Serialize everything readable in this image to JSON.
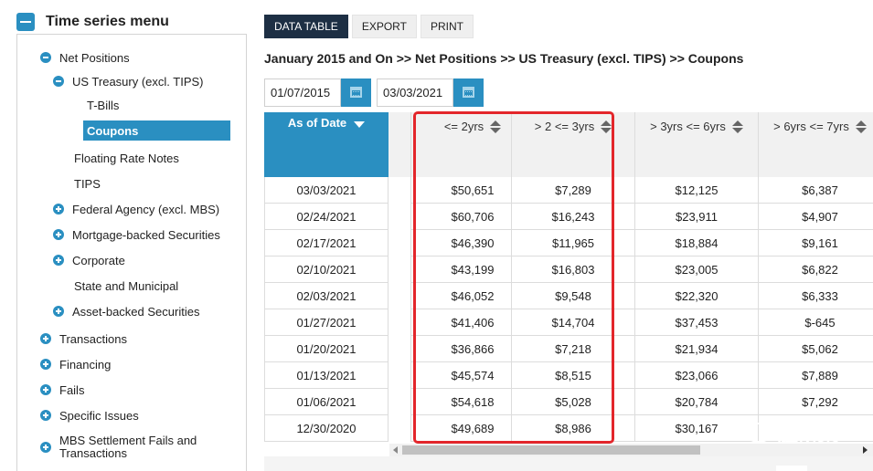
{
  "sidebar": {
    "title": "Time series menu",
    "items": [
      {
        "label": "Net Positions"
      },
      {
        "label": "US Treasury (excl. TIPS)"
      },
      {
        "label": "T-Bills"
      },
      {
        "label": "Coupons"
      },
      {
        "label": "Floating Rate Notes"
      },
      {
        "label": "TIPS"
      },
      {
        "label": "Federal Agency (excl. MBS)"
      },
      {
        "label": "Mortgage-backed Securities"
      },
      {
        "label": "Corporate"
      },
      {
        "label": "State and Municipal"
      },
      {
        "label": "Asset-backed Securities"
      },
      {
        "label": "Transactions"
      },
      {
        "label": "Financing"
      },
      {
        "label": "Fails"
      },
      {
        "label": "Specific Issues"
      },
      {
        "label": "MBS Settlement Fails and Transactions"
      }
    ]
  },
  "tabs": [
    {
      "label": "DATA TABLE"
    },
    {
      "label": "EXPORT"
    },
    {
      "label": "PRINT"
    }
  ],
  "breadcrumb": "January 2015 and On >> Net Positions >> US Treasury (excl. TIPS) >> Coupons",
  "dates": {
    "start": "01/07/2015",
    "end": "03/03/2021"
  },
  "table": {
    "columns": [
      "As of Date",
      "<= 2yrs",
      "> 2 <= 3yrs",
      "> 3yrs <= 6yrs",
      "> 6yrs <= 7yrs"
    ],
    "rows": [
      [
        "03/03/2021",
        "$50,651",
        "$7,289",
        "$12,125",
        "$6,387"
      ],
      [
        "02/24/2021",
        "$60,706",
        "$16,243",
        "$23,911",
        "$4,907"
      ],
      [
        "02/17/2021",
        "$46,390",
        "$11,965",
        "$18,884",
        "$9,161"
      ],
      [
        "02/10/2021",
        "$43,199",
        "$16,803",
        "$23,005",
        "$6,822"
      ],
      [
        "02/03/2021",
        "$46,052",
        "$9,548",
        "$22,320",
        "$6,333"
      ],
      [
        "01/27/2021",
        "$41,406",
        "$14,704",
        "$37,453",
        "$-645"
      ],
      [
        "01/20/2021",
        "$36,866",
        "$7,218",
        "$21,934",
        "$5,062"
      ],
      [
        "01/13/2021",
        "$45,574",
        "$8,515",
        "$23,066",
        "$7,889"
      ],
      [
        "01/06/2021",
        "$54,618",
        "$5,028",
        "$20,784",
        "$7,292"
      ],
      [
        "12/30/2020",
        "$49,689",
        "$8,986",
        "$30,167",
        ""
      ]
    ]
  },
  "watermark": "胜研集",
  "colors": {
    "accent": "#2a8fc1",
    "highlight": "#e3262b",
    "tab_selected": "#1d2f44"
  }
}
